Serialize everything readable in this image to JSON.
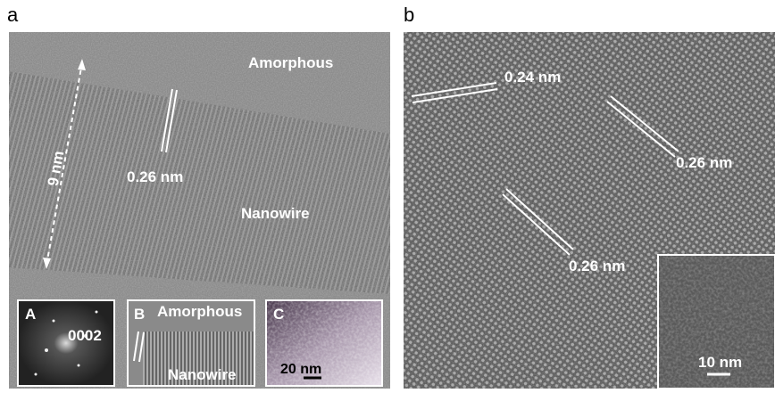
{
  "panels": [
    {
      "label": "a",
      "annotations": {
        "amorphous": "Amorphous",
        "thickness": "9 nm",
        "spacing": "0.26 nm",
        "nanowire": "Nanowire"
      },
      "insets": [
        {
          "label": "A",
          "text": "0002"
        },
        {
          "label": "B",
          "amorphous": "Amorphous",
          "nanowire": "Nanowire"
        },
        {
          "label": "C",
          "scale": "20 nm"
        }
      ]
    },
    {
      "label": "b",
      "spacings": [
        "0.24 nm",
        "0.26 nm",
        "0.26 nm"
      ],
      "inset": {
        "scale": "10 nm"
      }
    }
  ]
}
